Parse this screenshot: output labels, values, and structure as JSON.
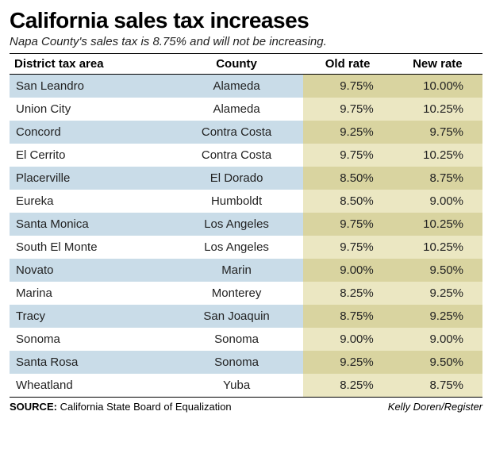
{
  "title": "California sales tax increases",
  "subtitle": "Napa County's sales tax is 8.75% and will not be increasing.",
  "columns": {
    "district": "District tax area",
    "county": "County",
    "old": "Old rate",
    "new": "New rate"
  },
  "rows": [
    {
      "district": "San Leandro",
      "county": "Alameda",
      "old": "9.75%",
      "new": "10.00%"
    },
    {
      "district": "Union City",
      "county": "Alameda",
      "old": "9.75%",
      "new": "10.25%"
    },
    {
      "district": "Concord",
      "county": "Contra Costa",
      "old": "9.25%",
      "new": "9.75%"
    },
    {
      "district": "El Cerrito",
      "county": "Contra Costa",
      "old": "9.75%",
      "new": "10.25%"
    },
    {
      "district": "Placerville",
      "county": "El Dorado",
      "old": "8.50%",
      "new": "8.75%"
    },
    {
      "district": "Eureka",
      "county": "Humboldt",
      "old": "8.50%",
      "new": "9.00%"
    },
    {
      "district": "Santa Monica",
      "county": "Los Angeles",
      "old": "9.75%",
      "new": "10.25%"
    },
    {
      "district": "South El Monte",
      "county": "Los Angeles",
      "old": "9.75%",
      "new": "10.25%"
    },
    {
      "district": "Novato",
      "county": "Marin",
      "old": "9.00%",
      "new": "9.50%"
    },
    {
      "district": "Marina",
      "county": "Monterey",
      "old": "8.25%",
      "new": "9.25%"
    },
    {
      "district": "Tracy",
      "county": "San Joaquin",
      "old": "8.75%",
      "new": "9.25%"
    },
    {
      "district": "Sonoma",
      "county": "Sonoma",
      "old": "9.00%",
      "new": "9.00%"
    },
    {
      "district": "Santa Rosa",
      "county": "Sonoma",
      "old": "9.25%",
      "new": "9.50%"
    },
    {
      "district": "Wheatland",
      "county": "Yuba",
      "old": "8.25%",
      "new": "8.75%"
    }
  ],
  "source_label": "SOURCE:",
  "source_value": "California State Board of Equalization",
  "credit": "Kelly Doren/Register",
  "style": {
    "type": "table",
    "row_odd_bg": "#c9dce8",
    "row_even_bg": "#ffffff",
    "rate_odd_bg": "#d9d4a0",
    "rate_even_bg": "#ebe7c2",
    "text_color": "#222222",
    "border_color": "#000000",
    "title_fontsize": 28,
    "subtitle_fontsize": 15,
    "body_fontsize": 15,
    "footer_fontsize": 13,
    "column_widths_pct": [
      34,
      28,
      19,
      19
    ],
    "column_align": [
      "left",
      "center",
      "right",
      "right"
    ]
  }
}
